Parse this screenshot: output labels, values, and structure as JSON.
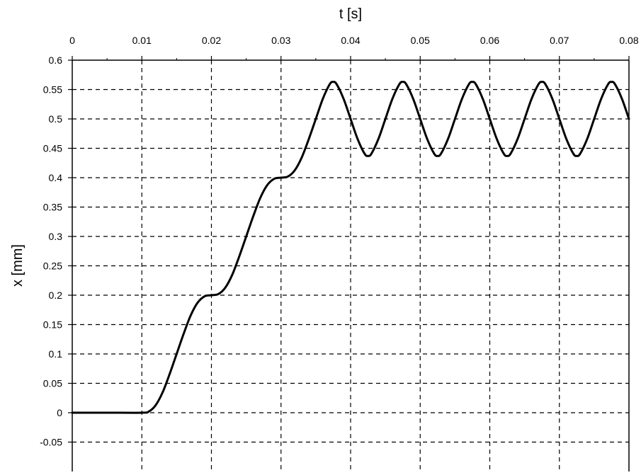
{
  "chart_data": {
    "type": "line",
    "title": "",
    "xlabel": "t [s]",
    "ylabel": "x [mm]",
    "x_axis_position": "top",
    "xlim": [
      0,
      0.08
    ],
    "ylim": [
      -0.1,
      0.6
    ],
    "x_ticks": [
      "0",
      "0.01",
      "0.02",
      "0.03",
      "0.04",
      "0.05",
      "0.06",
      "0.07",
      "0.08"
    ],
    "y_ticks": [
      "0.6",
      "0.55",
      "0.5",
      "0.45",
      "0.4",
      "0.35",
      "0.3",
      "0.25",
      "0.2",
      "0.15",
      "0.1",
      "0.05",
      "0",
      "-0.05"
    ],
    "grid": true,
    "grid_style": "dashed",
    "line_color": "#000000",
    "series": [
      {
        "x": [
          0,
          0.005,
          0.01,
          0.011,
          0.012,
          0.013,
          0.014,
          0.015,
          0.016,
          0.017,
          0.018,
          0.019,
          0.02,
          0.021,
          0.022,
          0.023,
          0.024,
          0.025,
          0.026,
          0.027,
          0.028,
          0.029,
          0.03,
          0.031,
          0.032,
          0.033,
          0.034,
          0.035,
          0.036,
          0.037,
          0.0375,
          0.038,
          0.039,
          0.04,
          0.041,
          0.042,
          0.0425,
          0.043,
          0.044,
          0.045,
          0.046,
          0.047,
          0.0475,
          0.048,
          0.049,
          0.05,
          0.051,
          0.052,
          0.0525,
          0.053,
          0.054,
          0.055,
          0.056,
          0.057,
          0.0575,
          0.058,
          0.059,
          0.06,
          0.061,
          0.062,
          0.0625,
          0.063,
          0.064,
          0.065,
          0.066,
          0.067,
          0.0675,
          0.068,
          0.069,
          0.07,
          0.071,
          0.072,
          0.0725,
          0.073,
          0.074,
          0.075,
          0.076,
          0.077,
          0.0775,
          0.078,
          0.079,
          0.08
        ],
        "y": [
          0,
          0,
          0,
          0.002,
          0.013,
          0.035,
          0.066,
          0.1,
          0.134,
          0.165,
          0.187,
          0.198,
          0.2,
          0.202,
          0.213,
          0.235,
          0.266,
          0.3,
          0.334,
          0.365,
          0.387,
          0.398,
          0.4,
          0.402,
          0.413,
          0.435,
          0.466,
          0.5,
          0.534,
          0.559,
          0.563,
          0.559,
          0.534,
          0.5,
          0.466,
          0.441,
          0.437,
          0.441,
          0.466,
          0.5,
          0.534,
          0.559,
          0.563,
          0.559,
          0.534,
          0.5,
          0.466,
          0.441,
          0.437,
          0.441,
          0.466,
          0.5,
          0.534,
          0.559,
          0.563,
          0.559,
          0.534,
          0.5,
          0.466,
          0.441,
          0.437,
          0.441,
          0.466,
          0.5,
          0.534,
          0.559,
          0.563,
          0.559,
          0.534,
          0.5,
          0.466,
          0.441,
          0.437,
          0.441,
          0.466,
          0.5,
          0.534,
          0.559,
          0.563,
          0.559,
          0.534,
          0.5
        ]
      }
    ]
  }
}
